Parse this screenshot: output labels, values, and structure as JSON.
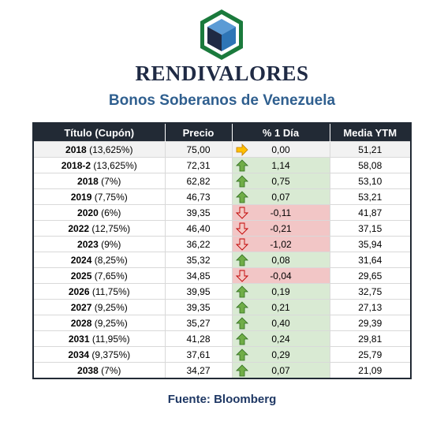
{
  "brand": {
    "name": "RENDIVALORES",
    "subtitle": "Bonos Soberanos de Venezuela"
  },
  "table": {
    "headers": [
      "Título (Cupón)",
      "Precio",
      "% 1 Día",
      "Media YTM"
    ],
    "rows": [
      {
        "name": "2018",
        "coupon": "(13,625%)",
        "price": "75,00",
        "change": "0,00",
        "trend": "flat",
        "ytm": "51,21"
      },
      {
        "name": "2018-2",
        "coupon": "(13,625%)",
        "price": "72,31",
        "change": "1,14",
        "trend": "up",
        "ytm": "58,08"
      },
      {
        "name": "2018",
        "coupon": "(7%)",
        "price": "62,82",
        "change": "0,75",
        "trend": "up",
        "ytm": "53,10"
      },
      {
        "name": "2019",
        "coupon": "(7,75%)",
        "price": "46,73",
        "change": "0,07",
        "trend": "up",
        "ytm": "53,21"
      },
      {
        "name": "2020",
        "coupon": "(6%)",
        "price": "39,35",
        "change": "-0,11",
        "trend": "down",
        "ytm": "41,87"
      },
      {
        "name": "2022",
        "coupon": "(12,75%)",
        "price": "46,40",
        "change": "-0,21",
        "trend": "down",
        "ytm": "37,15"
      },
      {
        "name": "2023",
        "coupon": "(9%)",
        "price": "36,22",
        "change": "-1,02",
        "trend": "down",
        "ytm": "35,94"
      },
      {
        "name": "2024",
        "coupon": "(8,25%)",
        "price": "35,32",
        "change": "0,08",
        "trend": "up",
        "ytm": "31,64"
      },
      {
        "name": "2025",
        "coupon": "(7,65%)",
        "price": "34,85",
        "change": "-0,04",
        "trend": "down",
        "ytm": "29,65"
      },
      {
        "name": "2026",
        "coupon": "(11,75%)",
        "price": "39,95",
        "change": "0,19",
        "trend": "up",
        "ytm": "32,75"
      },
      {
        "name": "2027",
        "coupon": "(9,25%)",
        "price": "39,35",
        "change": "0,21",
        "trend": "up",
        "ytm": "27,13"
      },
      {
        "name": "2028",
        "coupon": "(9,25%)",
        "price": "35,27",
        "change": "0,40",
        "trend": "up",
        "ytm": "29,39"
      },
      {
        "name": "2031",
        "coupon": "(11,95%)",
        "price": "41,28",
        "change": "0,24",
        "trend": "up",
        "ytm": "29,81"
      },
      {
        "name": "2034",
        "coupon": "(9,375%)",
        "price": "37,61",
        "change": "0,29",
        "trend": "up",
        "ytm": "25,79"
      },
      {
        "name": "2038",
        "coupon": "(7%)",
        "price": "34,27",
        "change": "0,07",
        "trend": "up",
        "ytm": "21,09"
      }
    ]
  },
  "footer": {
    "source": "Fuente: Bloomberg"
  },
  "colors": {
    "header_bg": "#222a35",
    "up_bg": "#d9ead3",
    "up_text": "#2e8b2e",
    "down_bg": "#f2c6c6",
    "down_text": "#c00000",
    "flat_bg": "#fde9d9",
    "flat_text": "#e26b0a",
    "subtitle": "#2f5f8f"
  },
  "icons": {
    "up": "arrow-up-icon",
    "down": "arrow-down-icon",
    "flat": "arrow-right-icon"
  }
}
